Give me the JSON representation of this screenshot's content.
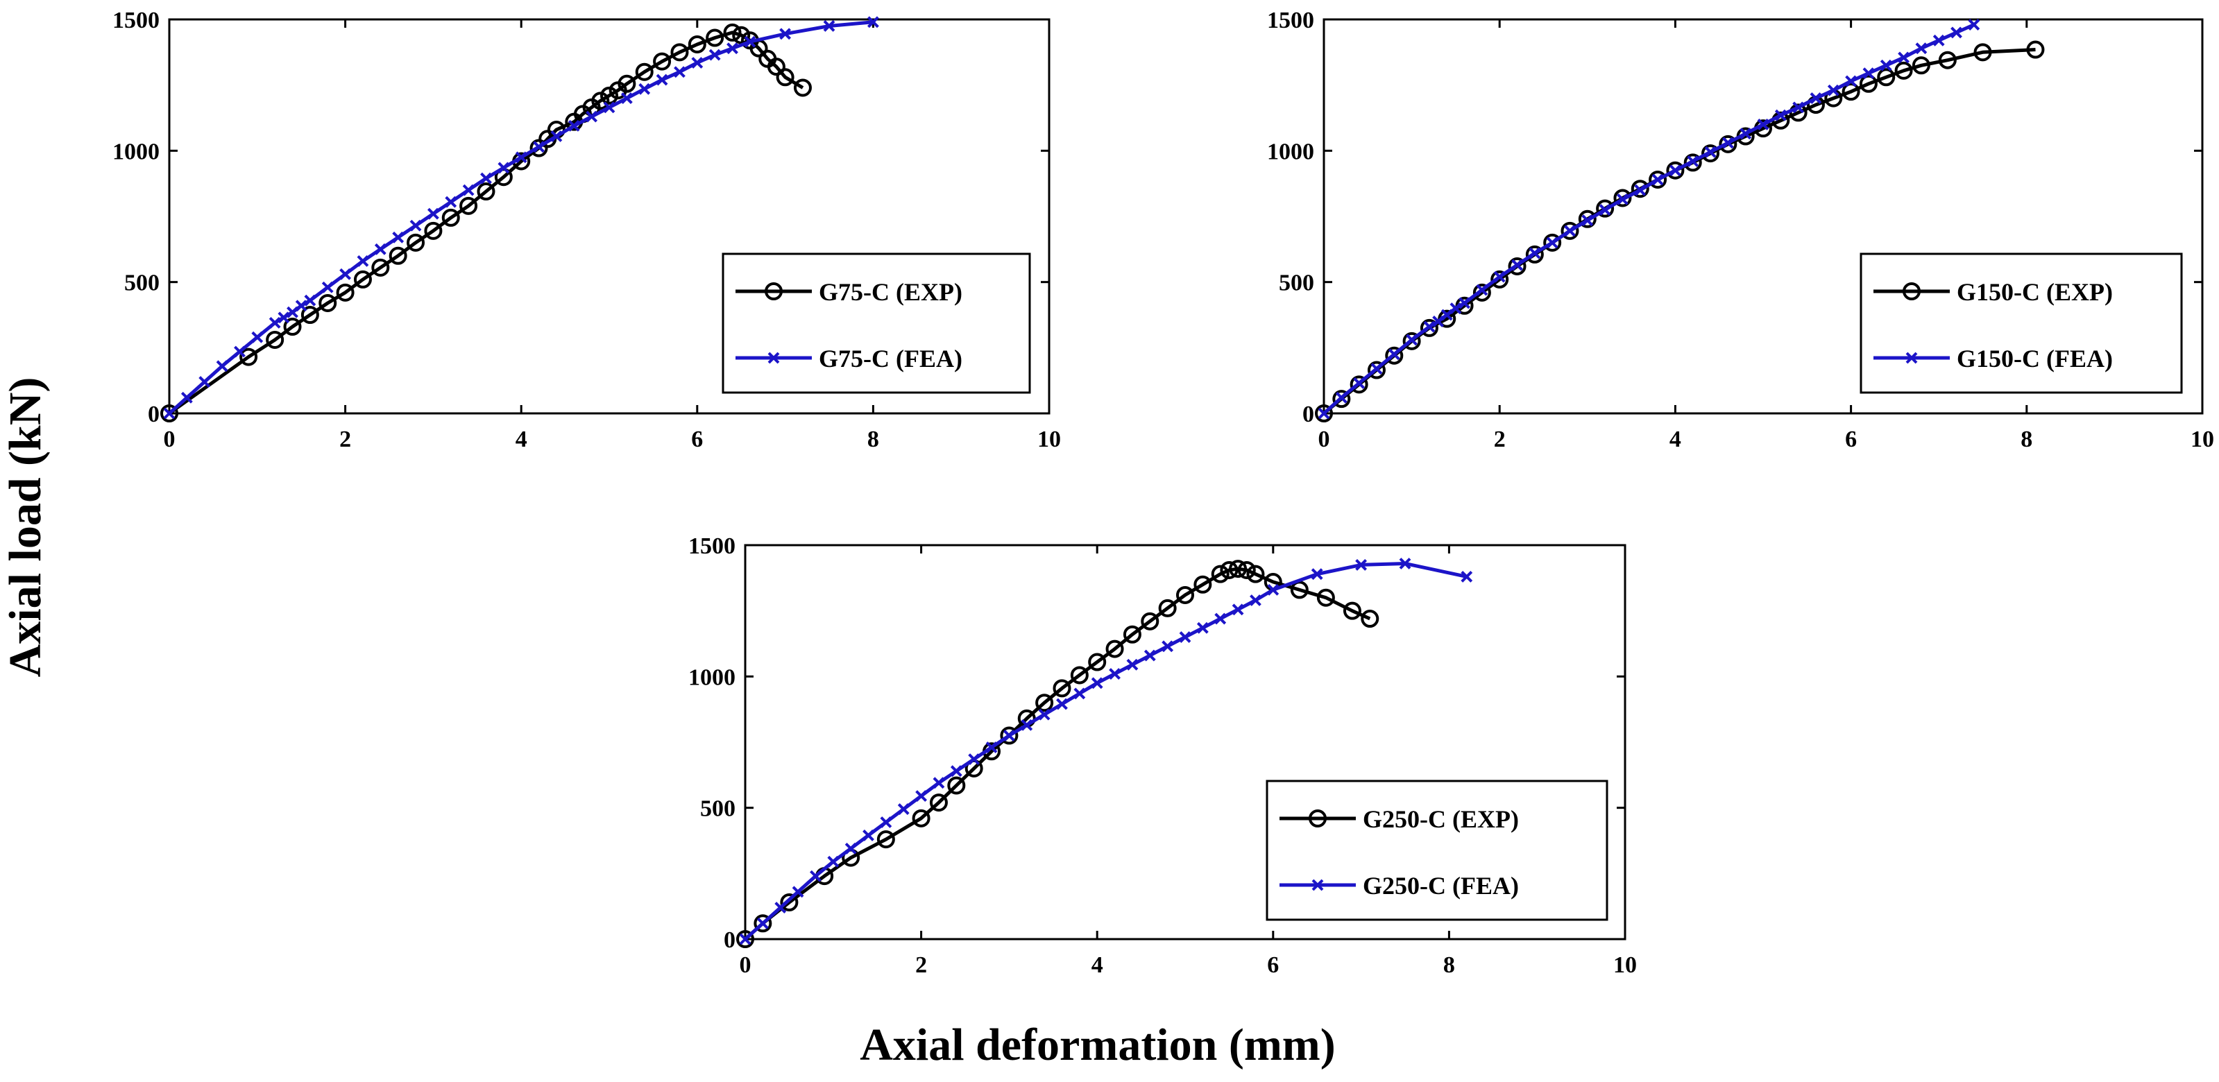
{
  "figure": {
    "ylabel": "Axial load (kN)",
    "xlabel": "Axial deformation (mm)"
  },
  "colors": {
    "exp": "#000000",
    "fea": "#1c14c8"
  },
  "chart_data": [
    {
      "id": "g75",
      "type": "line",
      "xlim": [
        0,
        10
      ],
      "ylim": [
        0,
        1500
      ],
      "xticks": [
        0,
        2,
        4,
        6,
        8,
        10
      ],
      "yticks": [
        0,
        500,
        1000,
        1500
      ],
      "legend": "right",
      "series": [
        {
          "name": "G75-C (EXP)",
          "marker": "circle",
          "x": [
            0,
            0.9,
            1.2,
            1.4,
            1.6,
            1.8,
            2.0,
            2.2,
            2.4,
            2.6,
            2.8,
            3.0,
            3.2,
            3.4,
            3.6,
            3.8,
            4.0,
            4.2,
            4.3,
            4.4,
            4.6,
            4.7,
            4.8,
            4.9,
            5.0,
            5.1,
            5.2,
            5.4,
            5.6,
            5.8,
            6.0,
            6.2,
            6.4,
            6.5,
            6.6,
            6.7,
            6.8,
            6.9,
            7.0,
            7.2
          ],
          "y": [
            0,
            215,
            280,
            330,
            375,
            420,
            460,
            510,
            555,
            600,
            650,
            695,
            745,
            790,
            845,
            900,
            960,
            1010,
            1045,
            1080,
            1110,
            1140,
            1165,
            1190,
            1210,
            1230,
            1255,
            1300,
            1340,
            1375,
            1405,
            1430,
            1450,
            1440,
            1420,
            1390,
            1350,
            1320,
            1280,
            1240
          ]
        },
        {
          "name": "G75-C (FEA)",
          "marker": "x",
          "x": [
            0,
            0.2,
            0.4,
            0.6,
            0.8,
            1.0,
            1.2,
            1.3,
            1.4,
            1.5,
            1.6,
            1.8,
            2.0,
            2.2,
            2.4,
            2.6,
            2.8,
            3.0,
            3.2,
            3.4,
            3.6,
            3.8,
            4.0,
            4.2,
            4.4,
            4.6,
            4.8,
            5.0,
            5.2,
            5.4,
            5.6,
            5.8,
            6.0,
            6.2,
            6.4,
            6.6,
            7.0,
            7.5,
            8.0
          ],
          "y": [
            0,
            60,
            120,
            180,
            235,
            290,
            345,
            365,
            385,
            410,
            430,
            480,
            530,
            580,
            625,
            670,
            715,
            760,
            805,
            850,
            895,
            935,
            975,
            1015,
            1055,
            1095,
            1130,
            1165,
            1200,
            1235,
            1270,
            1300,
            1335,
            1365,
            1390,
            1415,
            1445,
            1475,
            1490
          ]
        }
      ]
    },
    {
      "id": "g150",
      "type": "line",
      "xlim": [
        0,
        10
      ],
      "ylim": [
        0,
        1500
      ],
      "xticks": [
        0,
        2,
        4,
        6,
        8,
        10
      ],
      "yticks": [
        0,
        500,
        1000,
        1500
      ],
      "legend": "right",
      "series": [
        {
          "name": "G150-C (EXP)",
          "marker": "circle",
          "x": [
            0,
            0.2,
            0.4,
            0.6,
            0.8,
            1.0,
            1.2,
            1.4,
            1.6,
            1.8,
            2.0,
            2.2,
            2.4,
            2.6,
            2.8,
            3.0,
            3.2,
            3.4,
            3.6,
            3.8,
            4.0,
            4.2,
            4.4,
            4.6,
            4.8,
            5.0,
            5.2,
            5.4,
            5.6,
            5.8,
            6.0,
            6.2,
            6.4,
            6.6,
            6.8,
            7.1,
            7.5,
            8.1
          ],
          "y": [
            0,
            55,
            110,
            165,
            220,
            275,
            325,
            360,
            410,
            460,
            510,
            560,
            605,
            650,
            695,
            740,
            780,
            820,
            855,
            890,
            925,
            955,
            990,
            1025,
            1055,
            1085,
            1115,
            1145,
            1175,
            1200,
            1225,
            1255,
            1280,
            1305,
            1325,
            1345,
            1375,
            1385
          ]
        },
        {
          "name": "G150-C (FEA)",
          "marker": "x",
          "x": [
            0,
            0.2,
            0.4,
            0.6,
            0.8,
            1.0,
            1.2,
            1.3,
            1.4,
            1.5,
            1.6,
            1.8,
            2.0,
            2.2,
            2.4,
            2.6,
            2.8,
            3.0,
            3.2,
            3.4,
            3.6,
            3.8,
            4.0,
            4.2,
            4.4,
            4.6,
            4.8,
            5.0,
            5.2,
            5.4,
            5.6,
            5.8,
            6.0,
            6.2,
            6.4,
            6.6,
            6.8,
            7.0,
            7.2,
            7.4
          ],
          "y": [
            0,
            60,
            115,
            170,
            225,
            280,
            330,
            350,
            375,
            400,
            420,
            470,
            520,
            565,
            610,
            650,
            695,
            735,
            775,
            815,
            850,
            890,
            925,
            960,
            995,
            1030,
            1065,
            1100,
            1135,
            1165,
            1200,
            1230,
            1265,
            1295,
            1325,
            1355,
            1390,
            1420,
            1450,
            1480
          ]
        }
      ]
    },
    {
      "id": "g250",
      "type": "line",
      "xlim": [
        0,
        10
      ],
      "ylim": [
        0,
        1500
      ],
      "xticks": [
        0,
        2,
        4,
        6,
        8,
        10
      ],
      "yticks": [
        0,
        500,
        1000,
        1500
      ],
      "legend": "right",
      "series": [
        {
          "name": "G250-C (EXP)",
          "marker": "circle",
          "x": [
            0,
            0.2,
            0.5,
            0.9,
            1.2,
            1.6,
            2.0,
            2.2,
            2.4,
            2.6,
            2.8,
            3.0,
            3.2,
            3.4,
            3.6,
            3.8,
            4.0,
            4.2,
            4.4,
            4.6,
            4.8,
            5.0,
            5.2,
            5.4,
            5.5,
            5.6,
            5.7,
            5.8,
            6.0,
            6.3,
            6.6,
            6.9,
            7.1
          ],
          "y": [
            0,
            60,
            140,
            240,
            310,
            380,
            460,
            520,
            585,
            650,
            715,
            775,
            840,
            900,
            955,
            1005,
            1055,
            1105,
            1160,
            1210,
            1260,
            1310,
            1350,
            1390,
            1405,
            1410,
            1405,
            1390,
            1360,
            1330,
            1300,
            1250,
            1220
          ]
        },
        {
          "name": "G250-C (FEA)",
          "marker": "x",
          "x": [
            0,
            0.2,
            0.4,
            0.6,
            0.8,
            1.0,
            1.2,
            1.4,
            1.6,
            1.8,
            2.0,
            2.2,
            2.4,
            2.6,
            2.8,
            3.0,
            3.2,
            3.4,
            3.6,
            3.8,
            4.0,
            4.2,
            4.4,
            4.6,
            4.8,
            5.0,
            5.2,
            5.4,
            5.6,
            5.8,
            6.0,
            6.5,
            7.0,
            7.5,
            8.2
          ],
          "y": [
            0,
            60,
            120,
            180,
            240,
            295,
            345,
            395,
            445,
            495,
            545,
            595,
            640,
            685,
            730,
            775,
            815,
            855,
            895,
            935,
            975,
            1010,
            1045,
            1080,
            1115,
            1150,
            1185,
            1220,
            1255,
            1290,
            1330,
            1390,
            1425,
            1430,
            1380
          ]
        }
      ]
    }
  ]
}
